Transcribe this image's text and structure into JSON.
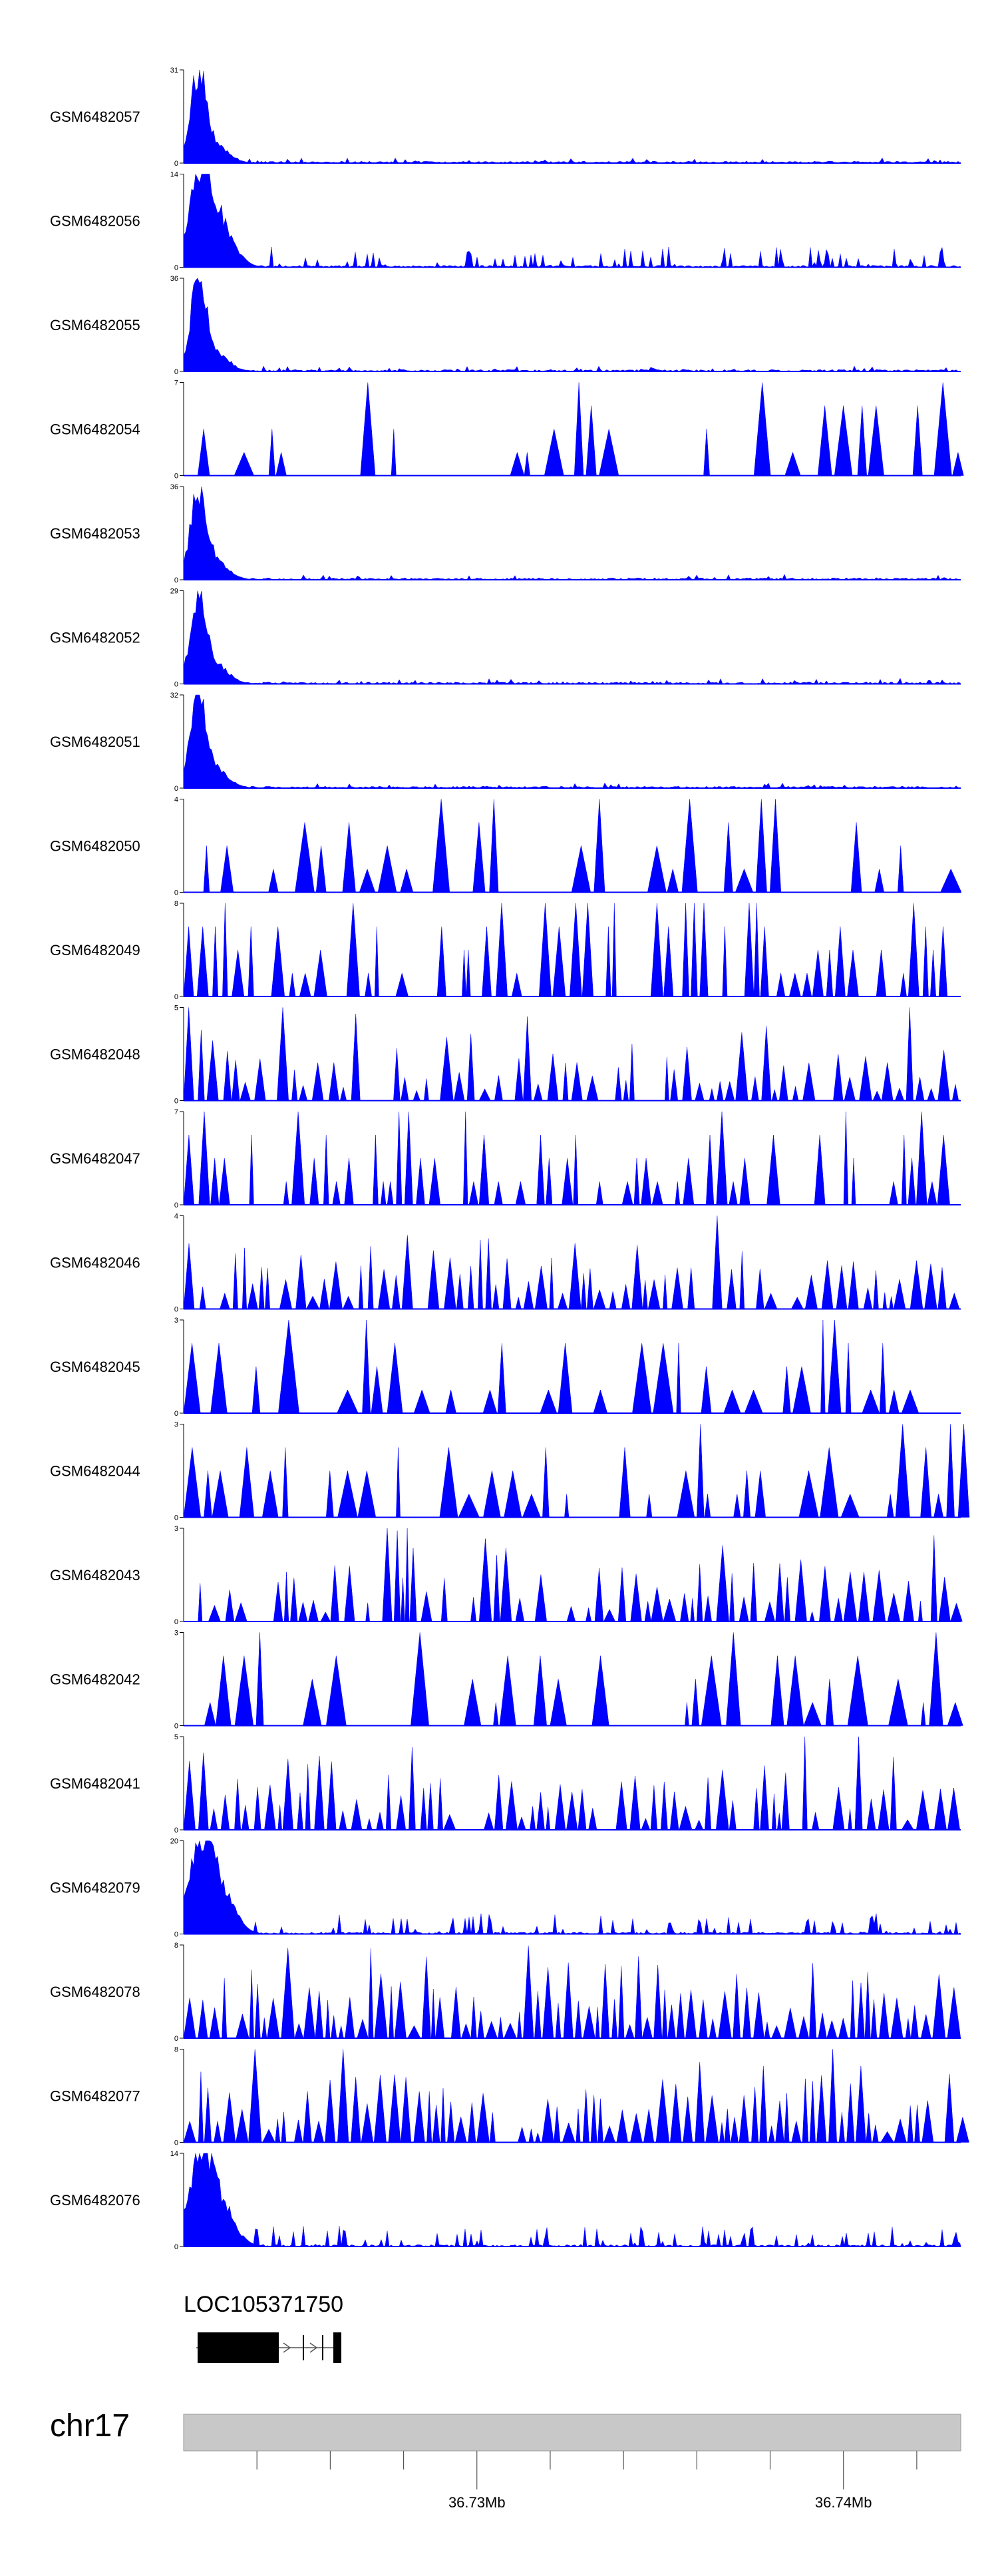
{
  "chart_data": {
    "type": "area",
    "tracks": [
      {
        "label": "GSM6482057",
        "ymax": 31,
        "ymin": 0,
        "profile": "peak",
        "seed": 11
      },
      {
        "label": "GSM6482056",
        "ymax": 14,
        "ymin": 0,
        "profile": "peak-spread",
        "seed": 12
      },
      {
        "label": "GSM6482055",
        "ymax": 36,
        "ymin": 0,
        "profile": "peak",
        "seed": 13
      },
      {
        "label": "GSM6482054",
        "ymax": 7,
        "ymin": 0,
        "profile": "sparse",
        "seed": 14
      },
      {
        "label": "GSM6482053",
        "ymax": 36,
        "ymin": 0,
        "profile": "peak",
        "seed": 15
      },
      {
        "label": "GSM6482052",
        "ymax": 29,
        "ymin": 0,
        "profile": "peak",
        "seed": 16
      },
      {
        "label": "GSM6482051",
        "ymax": 32,
        "ymin": 0,
        "profile": "peak",
        "seed": 17
      },
      {
        "label": "GSM6482050",
        "ymax": 4,
        "ymin": 0,
        "profile": "sparse",
        "seed": 18
      },
      {
        "label": "GSM6482049",
        "ymax": 8,
        "ymin": 0,
        "profile": "mixed",
        "seed": 19
      },
      {
        "label": "GSM6482048",
        "ymax": 5,
        "ymin": 0,
        "profile": "dense",
        "seed": 20
      },
      {
        "label": "GSM6482047",
        "ymax": 7,
        "ymin": 0,
        "profile": "mixed",
        "seed": 21
      },
      {
        "label": "GSM6482046",
        "ymax": 4,
        "ymin": 0,
        "profile": "dense",
        "seed": 22
      },
      {
        "label": "GSM6482045",
        "ymax": 3,
        "ymin": 0,
        "profile": "sparse",
        "seed": 23
      },
      {
        "label": "GSM6482044",
        "ymax": 3,
        "ymin": 0,
        "profile": "sparse",
        "seed": 24
      },
      {
        "label": "GSM6482043",
        "ymax": 3,
        "ymin": 0,
        "profile": "dense",
        "seed": 25
      },
      {
        "label": "GSM6482042",
        "ymax": 3,
        "ymin": 0,
        "profile": "sparse",
        "seed": 26
      },
      {
        "label": "GSM6482041",
        "ymax": 5,
        "ymin": 0,
        "profile": "dense",
        "seed": 27
      },
      {
        "label": "GSM6482079",
        "ymax": 20,
        "ymin": 0,
        "profile": "peak-spread",
        "seed": 28
      },
      {
        "label": "GSM6482078",
        "ymax": 8,
        "ymin": 0,
        "profile": "busy",
        "seed": 29
      },
      {
        "label": "GSM6482077",
        "ymax": 8,
        "ymin": 0,
        "profile": "busy",
        "seed": 30
      },
      {
        "label": "GSM6482076",
        "ymax": 14,
        "ymin": 0,
        "profile": "peak-spread",
        "seed": 31
      }
    ],
    "gene": {
      "name": "LOC105371750"
    },
    "chromosome": {
      "name": "chr17"
    },
    "axis": {
      "range_mb": [
        36.722,
        36.7432
      ],
      "minor_tick_step_mb": 0.002,
      "labeled_ticks": [
        {
          "value": 36.73,
          "label": "36.73Mb"
        },
        {
          "value": 36.74,
          "label": "36.74Mb"
        }
      ]
    },
    "colors": {
      "signal": "#0000ff",
      "axis": "#000000",
      "ideogram": "#c8c8c8",
      "gene": "#000000"
    }
  }
}
